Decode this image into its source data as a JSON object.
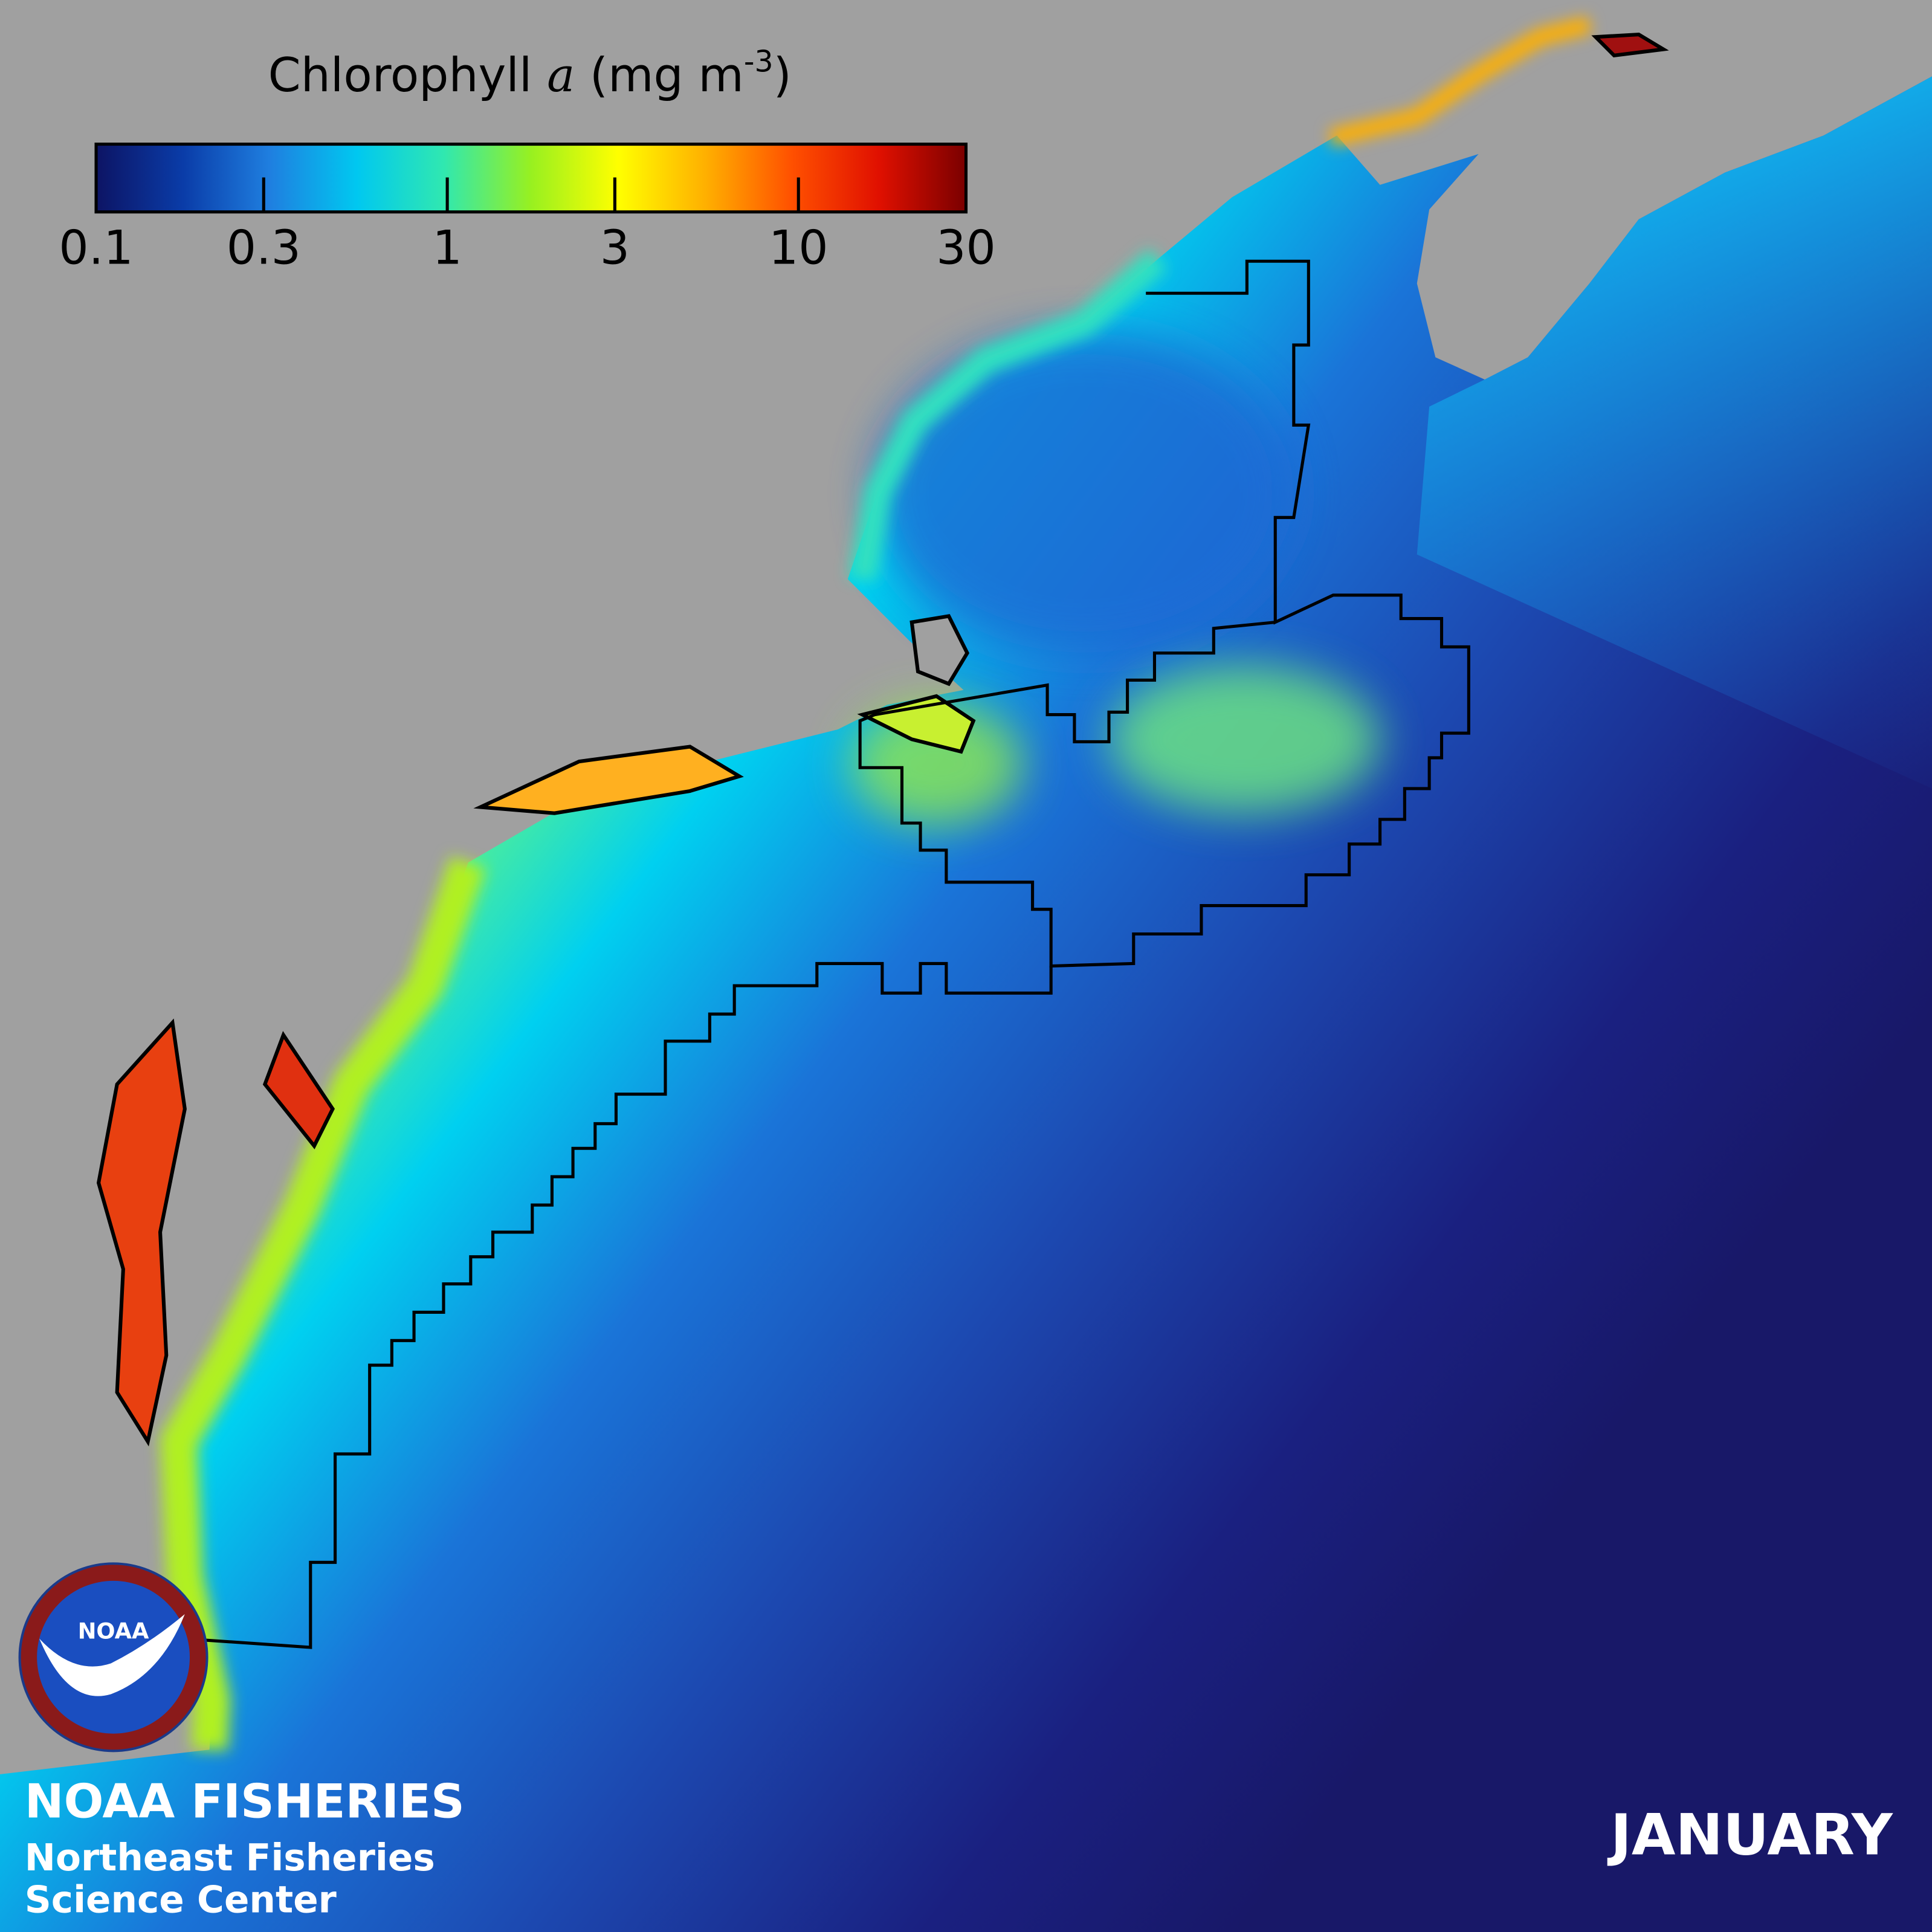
{
  "colorbar": {
    "title": {
      "text": "Chlorophyll ",
      "variable": "a",
      "unit": " (mg m",
      "exponent": "-3",
      "close": ")"
    },
    "lim": [
      0.1,
      30
    ],
    "ticks": [
      0.1,
      0.3,
      1,
      3,
      10,
      30
    ],
    "scale": "log",
    "colors": [
      "#0d1464",
      "#0a3ca8",
      "#1f7fe0",
      "#00c8f0",
      "#30e8b0",
      "#98f020",
      "#ffff00",
      "#ffb000",
      "#ff5000",
      "#e01000",
      "#7a0000"
    ]
  },
  "logo": {
    "text": "NOAA"
  },
  "branding": {
    "line1": "NOAA FISHERIES",
    "line2": "Northeast Fisheries",
    "line3": "Science Center"
  },
  "month": "JANUARY"
}
